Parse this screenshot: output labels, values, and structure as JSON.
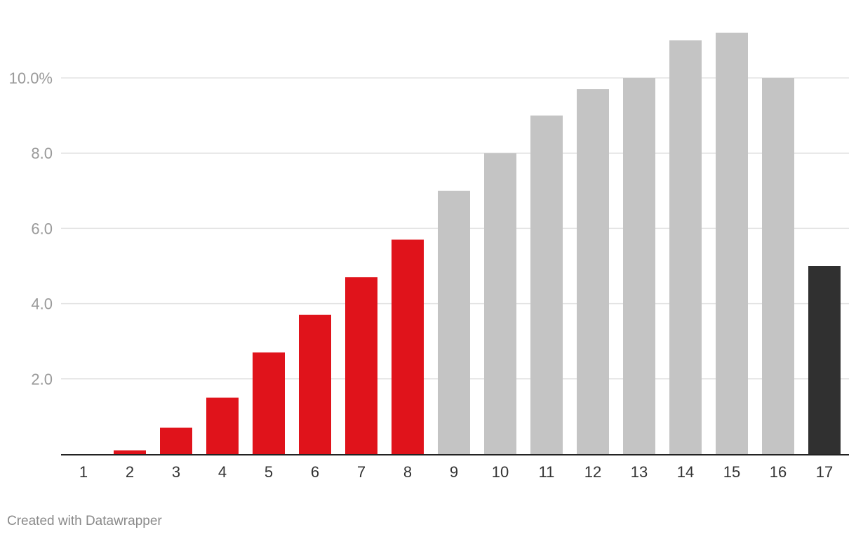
{
  "chart_data": {
    "type": "bar",
    "title": "",
    "xlabel": "",
    "ylabel": "",
    "categories": [
      "1",
      "2",
      "3",
      "4",
      "5",
      "6",
      "7",
      "8",
      "9",
      "10",
      "11",
      "12",
      "13",
      "14",
      "15",
      "16",
      "17"
    ],
    "values": [
      0,
      0.1,
      0.7,
      1.5,
      2.7,
      3.7,
      4.7,
      5.7,
      7.0,
      8.0,
      9.0,
      9.7,
      10.0,
      11.0,
      11.2,
      10.0,
      5.0
    ],
    "bar_colors": [
      "#e0131b",
      "#e0131b",
      "#e0131b",
      "#e0131b",
      "#e0131b",
      "#e0131b",
      "#e0131b",
      "#e0131b",
      "#c4c4c4",
      "#c4c4c4",
      "#c4c4c4",
      "#c4c4c4",
      "#c4c4c4",
      "#c4c4c4",
      "#c4c4c4",
      "#c4c4c4",
      "#303030"
    ],
    "ylim": [
      0,
      12
    ],
    "yticks": [
      {
        "value": 2,
        "label": "2.0"
      },
      {
        "value": 4,
        "label": "4.0"
      },
      {
        "value": 6,
        "label": "6.0"
      },
      {
        "value": 8,
        "label": "8.0"
      },
      {
        "value": 10,
        "label": "10.0%"
      }
    ],
    "grid": true,
    "legend": "none"
  },
  "colors": {
    "highlight": "#e0131b",
    "neutral": "#c4c4c4",
    "emphasis": "#303030",
    "gridline": "#e3e3e3",
    "baseline": "#222222"
  },
  "footer": {
    "credit": "Created with Datawrapper"
  }
}
